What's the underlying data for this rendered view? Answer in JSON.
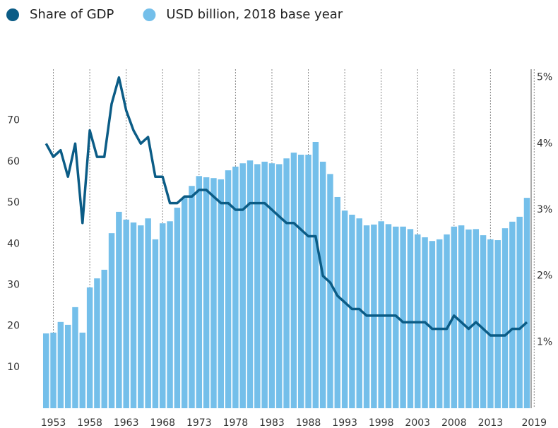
{
  "chart_data": {
    "type": "bar_line",
    "x": [
      1952,
      1953,
      1954,
      1955,
      1956,
      1957,
      1958,
      1959,
      1960,
      1961,
      1962,
      1963,
      1964,
      1965,
      1966,
      1967,
      1968,
      1969,
      1970,
      1971,
      1972,
      1973,
      1974,
      1975,
      1976,
      1977,
      1978,
      1979,
      1980,
      1981,
      1982,
      1983,
      1984,
      1985,
      1986,
      1987,
      1988,
      1989,
      1990,
      1991,
      1992,
      1993,
      1994,
      1995,
      1996,
      1997,
      1998,
      1999,
      2000,
      2001,
      2002,
      2003,
      2004,
      2005,
      2006,
      2007,
      2008,
      2009,
      2010,
      2011,
      2012,
      2013,
      2014,
      2015,
      2016,
      2017,
      2018
    ],
    "series": [
      {
        "name": "Share of GDP",
        "color": "#0b5c86",
        "axis": "y2",
        "values": [
          4.0,
          3.8,
          3.9,
          3.5,
          4.0,
          2.8,
          4.2,
          3.8,
          3.8,
          4.6,
          5.0,
          4.5,
          4.2,
          4.0,
          4.1,
          3.5,
          3.5,
          3.1,
          3.1,
          3.2,
          3.2,
          3.3,
          3.3,
          3.2,
          3.1,
          3.1,
          3.0,
          3.0,
          3.1,
          3.1,
          3.1,
          3.0,
          2.9,
          2.8,
          2.8,
          2.7,
          2.6,
          2.6,
          2.0,
          1.9,
          1.7,
          1.6,
          1.5,
          1.5,
          1.4,
          1.4,
          1.4,
          1.4,
          1.4,
          1.3,
          1.3,
          1.3,
          1.3,
          1.2,
          1.2,
          1.2,
          1.4,
          1.3,
          1.2,
          1.3,
          1.2,
          1.1,
          1.1,
          1.1,
          1.2,
          1.2,
          1.3
        ]
      },
      {
        "name": "USD billion, 2018 base year",
        "color": "#74bfea",
        "values": [
          18.2,
          18.4,
          21,
          20.3,
          24.6,
          18.4,
          29.4,
          31.6,
          33.7,
          42.6,
          47.8,
          45.9,
          45.2,
          44.5,
          46.2,
          41.1,
          45,
          45.5,
          48.8,
          51.2,
          54.1,
          56.5,
          56.2,
          56,
          55.7,
          57.9,
          58.8,
          59.6,
          60.3,
          59.4,
          60,
          59.6,
          59.4,
          60.8,
          62.2,
          61.7,
          61.7,
          64.8,
          60,
          57,
          51.4,
          48.1,
          47.1,
          46.2,
          44.5,
          44.7,
          45.5,
          44.8,
          44.2,
          44.2,
          43.6,
          42.3,
          41.6,
          40.7,
          41.1,
          42.3,
          44.2,
          44.5,
          43.5,
          43.6,
          42.1,
          41.1,
          40.9,
          43.8,
          45.4,
          46.6,
          51.2
        ]
      }
    ],
    "xlim": [
      1951.3,
      2021.3
    ],
    "xticks": [
      1953,
      1958,
      1963,
      1968,
      1973,
      1978,
      1983,
      1988,
      1993,
      1998,
      2003,
      2008,
      2013,
      2019
    ],
    "ylim": [
      0,
      81.3
    ],
    "yticks": [
      10,
      20,
      30,
      40,
      50,
      60,
      70
    ],
    "y2lim": [
      0,
      5.05
    ],
    "y2ticks": [
      {
        "value": 1,
        "label": "1%"
      },
      {
        "value": 2,
        "label": "2%"
      },
      {
        "value": 3,
        "label": "3%"
      },
      {
        "value": 4,
        "label": "4%"
      },
      {
        "value": 5,
        "label": "5%"
      }
    ],
    "grid": "x",
    "legend": "top-left"
  }
}
